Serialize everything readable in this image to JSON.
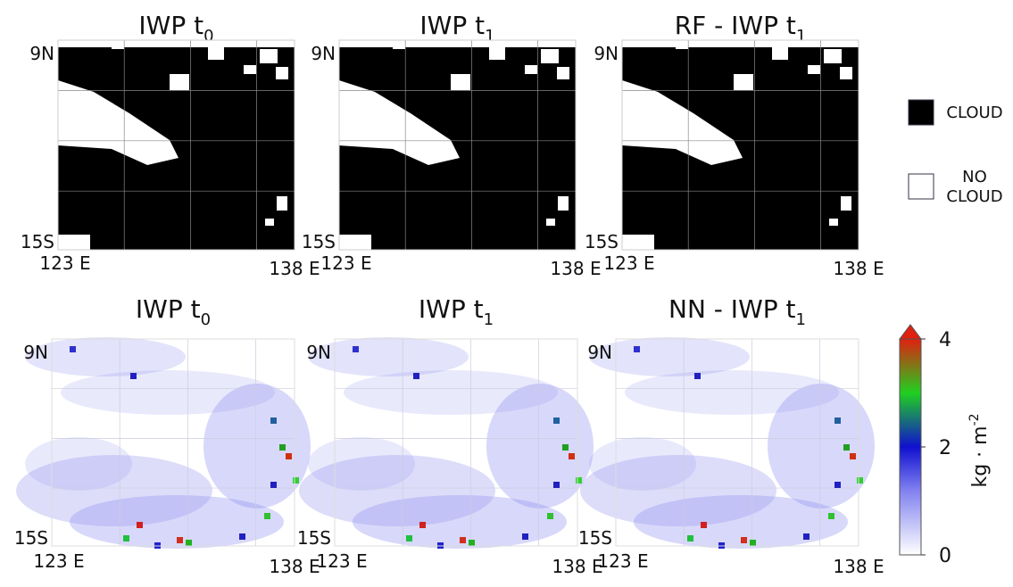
{
  "top_row": [
    {
      "title": {
        "main": "IWP t",
        "sub": "0"
      },
      "lat_labels": [
        "9N",
        "15S"
      ],
      "lon_labels": [
        "123 E",
        "138 E"
      ]
    },
    {
      "title": {
        "main": "IWP t",
        "sub": "1"
      },
      "lat_labels": [
        "9N",
        "15S"
      ],
      "lon_labels": [
        "123 E",
        "138 E"
      ]
    },
    {
      "title": {
        "main": "RF - IWP t",
        "sub": "1"
      },
      "lat_labels": [
        "9N",
        "15S"
      ],
      "lon_labels": [
        "123 E",
        "138 E"
      ]
    }
  ],
  "bottom_row": [
    {
      "title": {
        "main": "IWP t",
        "sub": "0"
      },
      "lat_labels": [
        "9N",
        "15S"
      ],
      "lon_labels": [
        "123 E",
        "138 E"
      ]
    },
    {
      "title": {
        "main": "IWP t",
        "sub": "1"
      },
      "lat_labels": [
        "9N",
        "15S"
      ],
      "lon_labels": [
        "123 E",
        "138 E"
      ]
    },
    {
      "title": {
        "main": "NN - IWP t",
        "sub": "1"
      },
      "lat_labels": [
        "9N",
        "15S"
      ],
      "lon_labels": [
        "123 E",
        "138 E"
      ]
    }
  ],
  "legend": [
    {
      "lines": [
        "CLOUD"
      ]
    },
    {
      "lines": [
        "NO",
        "CLOUD"
      ]
    }
  ],
  "colorbar": {
    "label": "kg · m",
    "label_sup": "-2",
    "lim": [
      0,
      4
    ],
    "ticks": [
      0,
      2,
      4
    ]
  }
}
